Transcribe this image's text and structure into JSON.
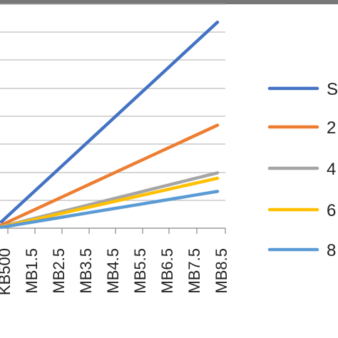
{
  "chart_data": {
    "type": "line",
    "title": "",
    "xlabel": "",
    "ylabel": "",
    "categories": [
      "KB500",
      "MB1.5",
      "MB2.5",
      "MB3.5",
      "MB4.5",
      "MB5.5",
      "MB6.5",
      "MB7.5",
      "MB8.5"
    ],
    "ylim": [
      0,
      7
    ],
    "grid": true,
    "legend_position": "right",
    "series": [
      {
        "name": "S",
        "color": "#4472C4",
        "values": [
          0.2,
          0.98,
          1.76,
          2.54,
          3.32,
          4.1,
          4.88,
          5.66,
          6.44
        ]
      },
      {
        "name": "2",
        "color": "#ED7D31",
        "values": [
          0.1,
          0.49,
          0.88,
          1.27,
          1.66,
          2.05,
          2.44,
          2.83,
          3.22
        ]
      },
      {
        "name": "4",
        "color": "#A5A5A5",
        "values": [
          0.05,
          0.26,
          0.47,
          0.68,
          0.89,
          1.1,
          1.31,
          1.52,
          1.73
        ]
      },
      {
        "name": "6",
        "color": "#FFC000",
        "values": [
          0.04,
          0.23,
          0.42,
          0.61,
          0.8,
          0.99,
          1.18,
          1.37,
          1.56
        ]
      },
      {
        "name": "8",
        "color": "#5B9BD5",
        "values": [
          0.03,
          0.17,
          0.31,
          0.45,
          0.59,
          0.73,
          0.87,
          1.01,
          1.15
        ]
      }
    ]
  }
}
